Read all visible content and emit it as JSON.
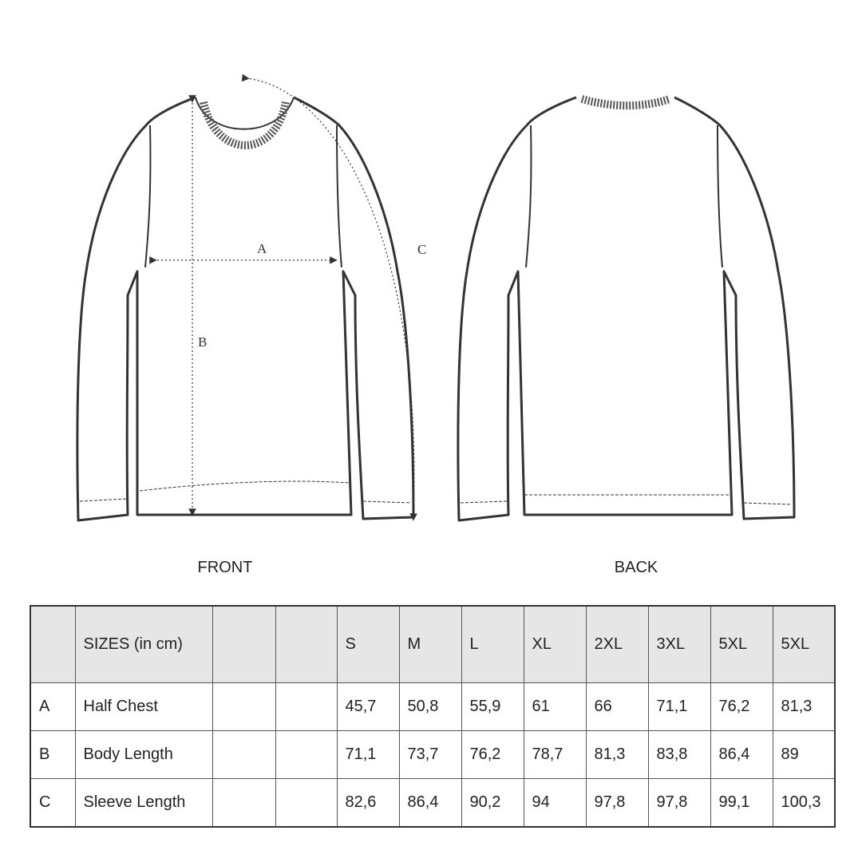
{
  "views": {
    "front": "FRONT",
    "back": "BACK"
  },
  "dimension_markers": {
    "a": "A",
    "b": "B",
    "c": "C"
  },
  "table": {
    "header": [
      "",
      "SIZES (in cm)",
      "",
      "",
      "S",
      "M",
      "L",
      "XL",
      "2XL",
      "3XL",
      "5XL",
      "5XL"
    ],
    "rows": [
      [
        "A",
        "Half Chest",
        "",
        "",
        "45,7",
        "50,8",
        "55,9",
        "61",
        "66",
        "71,1",
        "76,2",
        "81,3"
      ],
      [
        "B",
        "Body Length",
        "",
        "",
        "71,1",
        "73,7",
        "76,2",
        "78,7",
        "81,3",
        "83,8",
        "86,4",
        "89"
      ],
      [
        "C",
        "Sleeve Length",
        "",
        "",
        "82,6",
        "86,4",
        "90,2",
        "94",
        "97,8",
        "97,8",
        "99,1",
        "100,3"
      ]
    ]
  }
}
